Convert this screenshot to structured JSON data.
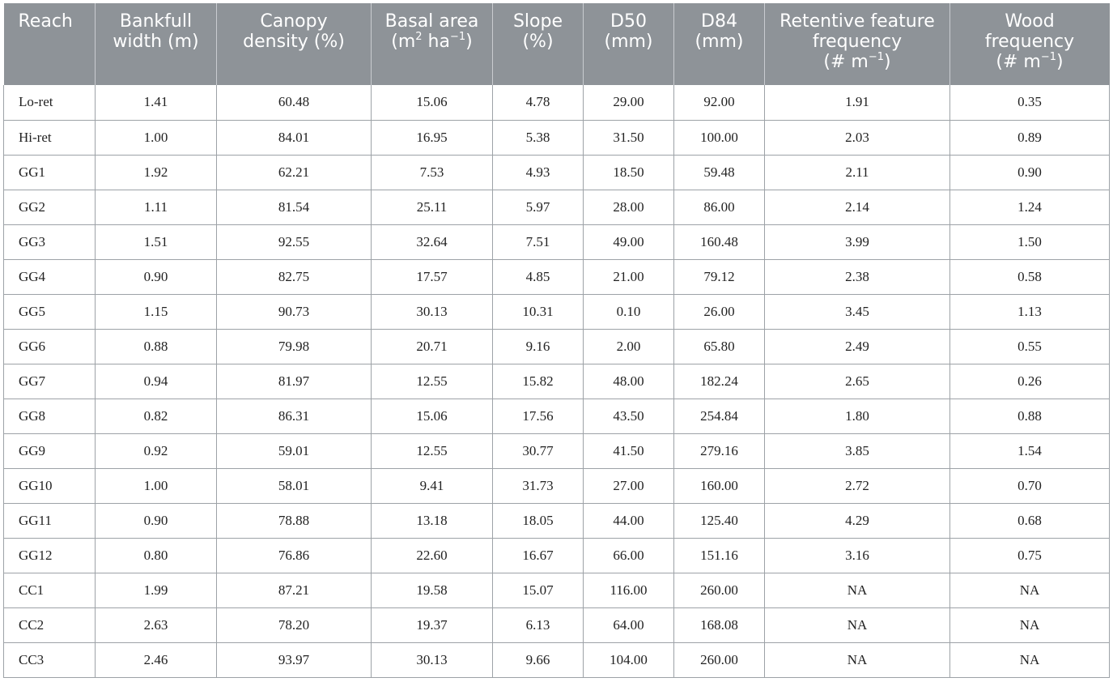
{
  "table": {
    "headers": [
      {
        "line1": "Reach",
        "line2": "",
        "line3": ""
      },
      {
        "line1": "Bankfull",
        "line2": "width (m)",
        "line3": ""
      },
      {
        "line1": "Canopy",
        "line2": "density (%)",
        "line3": ""
      },
      {
        "line1": "Basal area",
        "line2": "(m",
        "sup1": "2",
        "mid": " ha",
        "sup2": "−1",
        "end": ")",
        "line3": ""
      },
      {
        "line1": "Slope",
        "line2": "(%)",
        "line3": ""
      },
      {
        "line1": "D50",
        "line2": "(mm)",
        "line3": ""
      },
      {
        "line1": "D84",
        "line2": "(mm)",
        "line3": ""
      },
      {
        "line1": "Retentive feature",
        "line2": "frequency",
        "line3": "(# m",
        "sup": "−1",
        "end": ")"
      },
      {
        "line1": "Wood",
        "line2": "frequency",
        "line3": "(# m",
        "sup": "−1",
        "end": ")"
      }
    ],
    "rows": [
      [
        "Lo-ret",
        "1.41",
        "60.48",
        "15.06",
        "4.78",
        "29.00",
        "92.00",
        "1.91",
        "0.35"
      ],
      [
        "Hi-ret",
        "1.00",
        "84.01",
        "16.95",
        "5.38",
        "31.50",
        "100.00",
        "2.03",
        "0.89"
      ],
      [
        "GG1",
        "1.92",
        "62.21",
        "7.53",
        "4.93",
        "18.50",
        "59.48",
        "2.11",
        "0.90"
      ],
      [
        "GG2",
        "1.11",
        "81.54",
        "25.11",
        "5.97",
        "28.00",
        "86.00",
        "2.14",
        "1.24"
      ],
      [
        "GG3",
        "1.51",
        "92.55",
        "32.64",
        "7.51",
        "49.00",
        "160.48",
        "3.99",
        "1.50"
      ],
      [
        "GG4",
        "0.90",
        "82.75",
        "17.57",
        "4.85",
        "21.00",
        "79.12",
        "2.38",
        "0.58"
      ],
      [
        "GG5",
        "1.15",
        "90.73",
        "30.13",
        "10.31",
        "0.10",
        "26.00",
        "3.45",
        "1.13"
      ],
      [
        "GG6",
        "0.88",
        "79.98",
        "20.71",
        "9.16",
        "2.00",
        "65.80",
        "2.49",
        "0.55"
      ],
      [
        "GG7",
        "0.94",
        "81.97",
        "12.55",
        "15.82",
        "48.00",
        "182.24",
        "2.65",
        "0.26"
      ],
      [
        "GG8",
        "0.82",
        "86.31",
        "15.06",
        "17.56",
        "43.50",
        "254.84",
        "1.80",
        "0.88"
      ],
      [
        "GG9",
        "0.92",
        "59.01",
        "12.55",
        "30.77",
        "41.50",
        "279.16",
        "3.85",
        "1.54"
      ],
      [
        "GG10",
        "1.00",
        "58.01",
        "9.41",
        "31.73",
        "27.00",
        "160.00",
        "2.72",
        "0.70"
      ],
      [
        "GG11",
        "0.90",
        "78.88",
        "13.18",
        "18.05",
        "44.00",
        "125.40",
        "4.29",
        "0.68"
      ],
      [
        "GG12",
        "0.80",
        "76.86",
        "22.60",
        "16.67",
        "66.00",
        "151.16",
        "3.16",
        "0.75"
      ],
      [
        "CC1",
        "1.99",
        "87.21",
        "19.58",
        "15.07",
        "116.00",
        "260.00",
        "NA",
        "NA"
      ],
      [
        "CC2",
        "2.63",
        "78.20",
        "19.37",
        "6.13",
        "64.00",
        "168.08",
        "NA",
        "NA"
      ],
      [
        "CC3",
        "2.46",
        "93.97",
        "30.13",
        "9.66",
        "104.00",
        "260.00",
        "NA",
        "NA"
      ]
    ]
  },
  "colors": {
    "header_bg": "#8e9398",
    "header_text": "#ffffff",
    "grid_line": "#9da2a7",
    "body_text": "#222222"
  }
}
